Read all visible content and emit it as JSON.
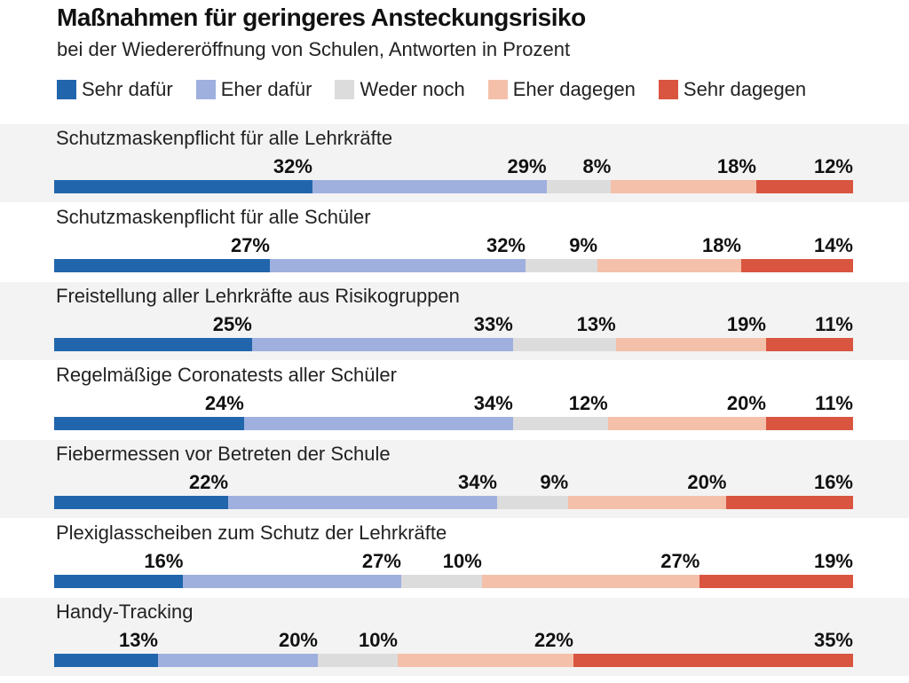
{
  "title": "Maßnahmen für geringeres Ansteckungsrisiko",
  "subtitle": "bei der Wiedereröffnung von Schulen, Antworten in Prozent",
  "legend": [
    {
      "label": "Sehr dafür",
      "color": "#2166ac"
    },
    {
      "label": "Eher dafür",
      "color": "#9fb0df"
    },
    {
      "label": "Weder noch",
      "color": "#dcdcdc"
    },
    {
      "label": "Eher dagegen",
      "color": "#f4c0aa"
    },
    {
      "label": "Sehr dagegen",
      "color": "#d95540"
    }
  ],
  "chart_data": {
    "type": "bar",
    "stacked": true,
    "orientation": "horizontal",
    "title": "Maßnahmen für geringeres Ansteckungsrisiko",
    "subtitle": "bei der Wiedereröffnung von Schulen, Antworten in Prozent",
    "legend_position": "top",
    "categories": [
      "Schutzmaskenpflicht für alle Lehrkräfte",
      "Schutzmaskenpflicht für alle Schüler",
      "Freistellung aller Lehrkräfte aus Risikogruppen",
      "Regelmäßige Coronatests aller Schüler",
      "Fiebermessen vor Betreten der Schule",
      "Plexiglasscheiben zum Schutz der Lehrkräfte",
      "Handy-Tracking"
    ],
    "series": [
      {
        "name": "Sehr dafür",
        "color": "#2166ac",
        "values": [
          32,
          27,
          25,
          24,
          22,
          16,
          13
        ]
      },
      {
        "name": "Eher dafür",
        "color": "#9fb0df",
        "values": [
          29,
          32,
          33,
          34,
          34,
          27,
          20
        ]
      },
      {
        "name": "Weder noch",
        "color": "#dcdcdc",
        "values": [
          8,
          9,
          13,
          12,
          9,
          10,
          10
        ]
      },
      {
        "name": "Eher dagegen",
        "color": "#f4c0aa",
        "values": [
          18,
          18,
          19,
          20,
          20,
          27,
          22
        ]
      },
      {
        "name": "Sehr dagegen",
        "color": "#d95540",
        "values": [
          12,
          14,
          11,
          11,
          16,
          19,
          35
        ]
      }
    ],
    "value_suffix": "%"
  }
}
